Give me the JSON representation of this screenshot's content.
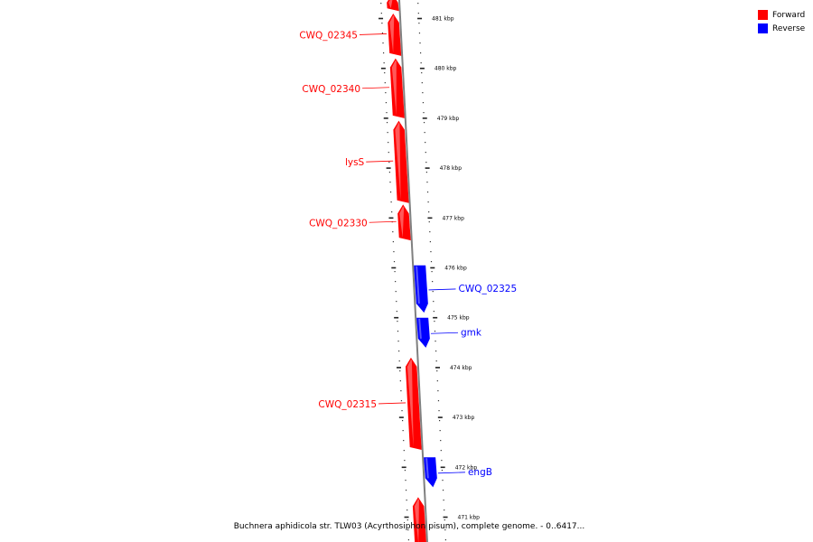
{
  "legend": [
    {
      "label": "Forward",
      "color": "#ff0000"
    },
    {
      "label": "Reverse",
      "color": "#0000ff"
    }
  ],
  "caption": "Buchnera aphidicola str. TLW03 (Acyrthosiphon pisum), complete genome. - 0..6417...",
  "colors": {
    "forward": "#ff0000",
    "reverse": "#0000ff",
    "backbone": "#808080"
  },
  "chart_data": {
    "type": "linear-genome-map",
    "unit": "kbp",
    "range_kbp": [
      470.5,
      481.4
    ],
    "ticks": [
      {
        "value": 481,
        "label": "481 kbp"
      },
      {
        "value": 480,
        "label": "480 kbp"
      },
      {
        "value": 479,
        "label": "479 kbp"
      },
      {
        "value": 478,
        "label": "478 kbp"
      },
      {
        "value": 477,
        "label": "477 kbp"
      },
      {
        "value": 476,
        "label": "476 kbp"
      },
      {
        "value": 475,
        "label": "475 kbp"
      },
      {
        "value": 474,
        "label": "474 kbp"
      },
      {
        "value": 473,
        "label": "473 kbp"
      },
      {
        "value": 472,
        "label": "472 kbp"
      },
      {
        "value": 471,
        "label": "471 kbp"
      }
    ],
    "genes": [
      {
        "name": "",
        "strand": "forward",
        "start_kbp": 481.15,
        "end_kbp": 481.5
      },
      {
        "name": "CWQ_02345",
        "strand": "forward",
        "start_kbp": 480.25,
        "end_kbp": 481.1
      },
      {
        "name": "CWQ_02340",
        "strand": "forward",
        "start_kbp": 479.0,
        "end_kbp": 480.2
      },
      {
        "name": "lysS",
        "strand": "forward",
        "start_kbp": 477.3,
        "end_kbp": 478.95
      },
      {
        "name": "CWQ_02330",
        "strand": "forward",
        "start_kbp": 476.55,
        "end_kbp": 477.27
      },
      {
        "name": "CWQ_02325",
        "strand": "reverse",
        "start_kbp": 475.1,
        "end_kbp": 476.05
      },
      {
        "name": "gmk",
        "strand": "reverse",
        "start_kbp": 474.4,
        "end_kbp": 475.0
      },
      {
        "name": "CWQ_02315",
        "strand": "forward",
        "start_kbp": 472.35,
        "end_kbp": 474.2
      },
      {
        "name": "engB",
        "strand": "reverse",
        "start_kbp": 471.6,
        "end_kbp": 472.2
      },
      {
        "name": "",
        "strand": "forward",
        "start_kbp": 470.4,
        "end_kbp": 471.4
      }
    ]
  }
}
